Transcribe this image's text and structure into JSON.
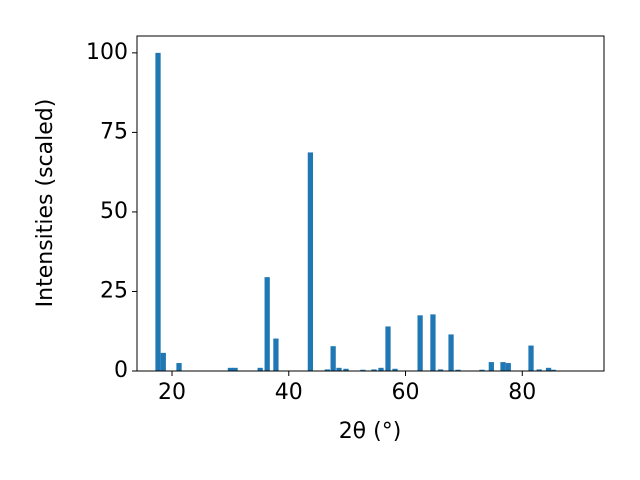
{
  "chart_data": {
    "type": "bar",
    "x_label": "2θ (°)",
    "y_label": "Intensities (scaled)",
    "x": [
      17.6,
      18.5,
      21.2,
      30.0,
      30.8,
      35.1,
      36.3,
      37.8,
      43.7,
      46.6,
      47.6,
      48.6,
      49.8,
      52.7,
      54.6,
      55.8,
      57.0,
      58.2,
      62.5,
      64.7,
      66.0,
      67.8,
      69.0,
      73.1,
      74.7,
      76.7,
      77.6,
      81.5,
      82.9,
      84.5,
      85.3
    ],
    "values": [
      100,
      5.7,
      2.5,
      1,
      1,
      1,
      29.5,
      10.2,
      68.7,
      0.5,
      7.8,
      1,
      0.7,
      0.4,
      0.5,
      1,
      14,
      0.7,
      17.5,
      17.8,
      0.5,
      11.5,
      0.4,
      0.4,
      2.8,
      2.8,
      2.5,
      8,
      0.5,
      1,
      0.4
    ],
    "color": "#1f77b4",
    "xlim": [
      14,
      94
    ],
    "ylim": [
      0,
      105.3
    ],
    "xticks": [
      20,
      40,
      60,
      80
    ],
    "yticks": [
      0,
      25,
      50,
      75,
      100
    ],
    "grid": false
  }
}
